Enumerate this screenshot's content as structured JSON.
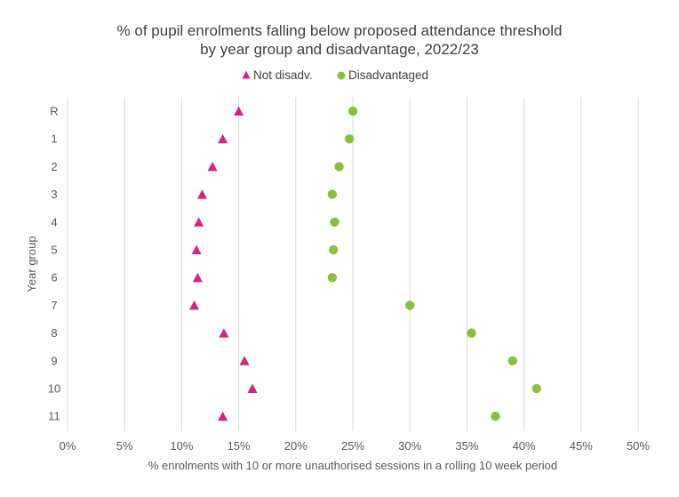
{
  "chart_data": {
    "type": "scatter",
    "title": [
      "% of pupil enrolments falling below proposed attendance threshold",
      "by year group and disadvantage, 2022/23"
    ],
    "xlabel": "% enrolments with 10 or more unauthorised sessions in a rolling 10 week period",
    "ylabel": "Year group",
    "xlim": [
      0,
      50
    ],
    "xticks": [
      "0%",
      "5%",
      "10%",
      "15%",
      "20%",
      "25%",
      "30%",
      "35%",
      "40%",
      "45%",
      "50%"
    ],
    "categories": [
      "R",
      "1",
      "2",
      "3",
      "4",
      "5",
      "6",
      "7",
      "8",
      "9",
      "10",
      "11"
    ],
    "grid": "vertical",
    "legend_position": "top",
    "series": [
      {
        "name": "Not disadv.",
        "marker": "triangle",
        "color": "#d6257a",
        "values": [
          15.0,
          13.6,
          12.7,
          11.8,
          11.5,
          11.3,
          11.4,
          11.1,
          13.7,
          15.5,
          16.2,
          13.6
        ]
      },
      {
        "name": "Disadvantaged",
        "marker": "circle",
        "color": "#8cbf3f",
        "values": [
          25.0,
          24.7,
          23.8,
          23.2,
          23.4,
          23.3,
          23.2,
          30.0,
          35.4,
          39.0,
          41.1,
          37.5
        ]
      }
    ]
  }
}
